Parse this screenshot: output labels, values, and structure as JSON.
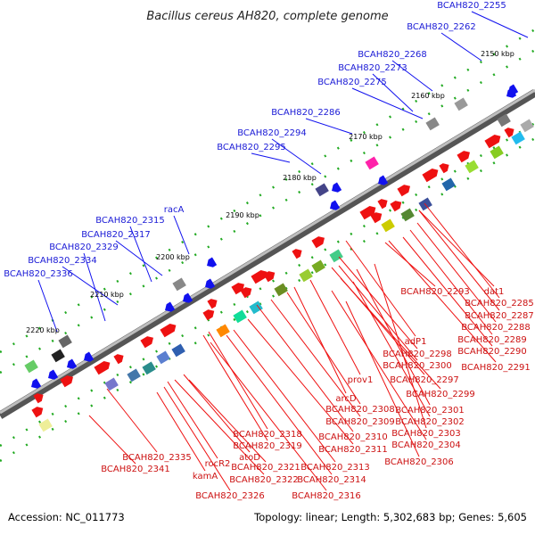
{
  "title": "Bacillus cereus AH820, complete genome",
  "footer": {
    "accession": "Accession: NC_011773",
    "stats": "Topology: linear; Length: 5,302,683 bp; Genes: 5,605"
  },
  "colors": {
    "backbone": "#888888",
    "forward_feature": "#ee1111",
    "reverse_feature": "#1111ee",
    "forward_label": "#cc1111",
    "reverse_label": "#1a1ad6",
    "dotted_ruler": "#22aa22"
  },
  "ticks": [
    "2150 kbp",
    "2160 kbp",
    "2170 kbp",
    "2180 kbp",
    "2190 kbp",
    "2200 kbp",
    "2210 kbp",
    "2220 kbp"
  ],
  "top_labels": [
    "BCAH820_2255",
    "BCAH820_2262",
    "BCAH820_2268",
    "BCAH820_2273",
    "BCAH820_2275",
    "BCAH820_2286",
    "BCAH820_2294",
    "BCAH820_2295",
    "racA",
    "BCAH820_2315",
    "BCAH820_2317",
    "BCAH820_2329",
    "BCAH820_2334",
    "BCAH820_2336"
  ],
  "bottom_labels": [
    "BCAH820_2293",
    "dat1",
    "BCAH820_2285",
    "BCAH820_2287",
    "BCAH820_2288",
    "BCAH820_2289",
    "BCAH820_2290",
    "BCAH820_2291",
    "adP1",
    "BCAH820_2298",
    "BCAH820_2300",
    "BCAH820_2297",
    "BCAH820_2299",
    "prov1",
    "arcD",
    "BCAH820_2301",
    "BCAH820_2308",
    "BCAH820_2302",
    "BCAH820_2309",
    "BCAH820_2303",
    "BCAH820_2310",
    "BCAH820_2304",
    "BCAH820_2318",
    "BCAH820_2319",
    "BCAH820_2311",
    "BCAH820_2306",
    "BCAH820_2335",
    "BCAH820_2313",
    "rocR2",
    "atoD",
    "BCAH820_2341",
    "BCAH820_2321",
    "BCAH820_2314",
    "kamA",
    "BCAH820_2322",
    "BCAH820_2326",
    "BCAH820_2316"
  ]
}
